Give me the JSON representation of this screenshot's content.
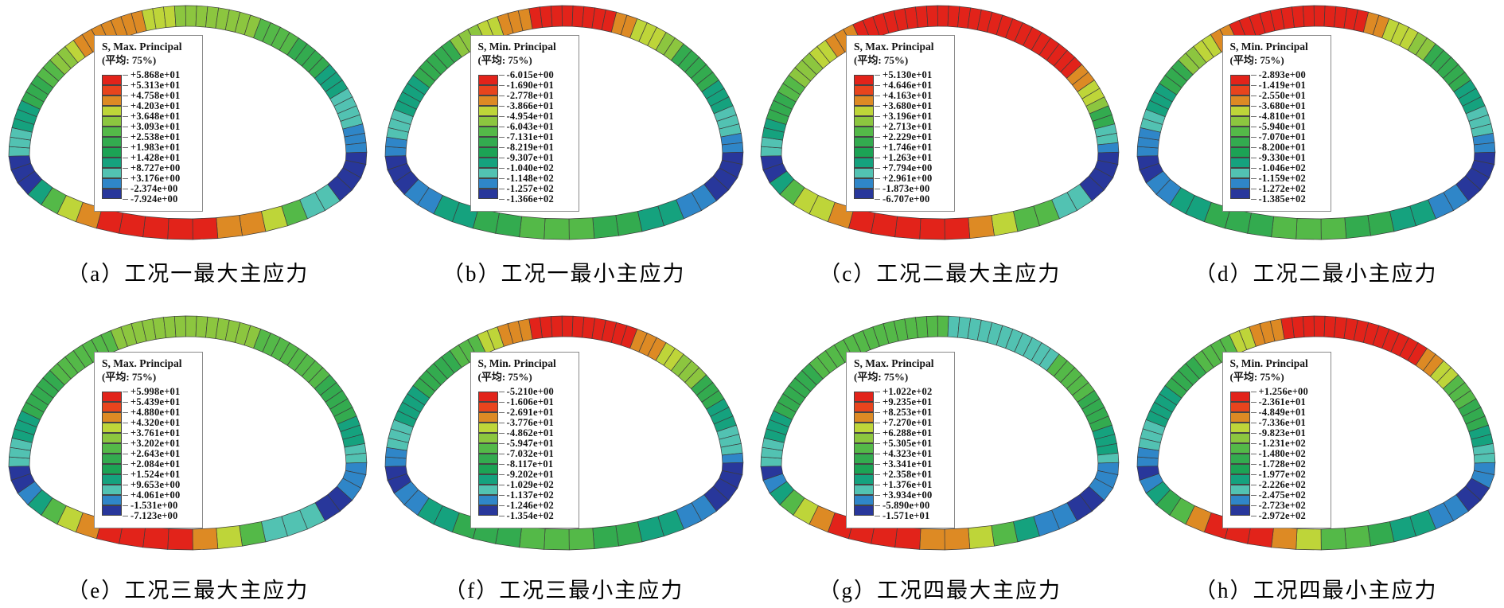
{
  "palette": [
    "#e2231a",
    "#e8441d",
    "#dd8a24",
    "#bed539",
    "#8cc63f",
    "#54b948",
    "#33ab4f",
    "#1ca355",
    "#15a27e",
    "#52c2b2",
    "#2f86c8",
    "#28379b"
  ],
  "mesh_line_color": "#3c3c3c",
  "legend_subtitle": "(平均: 75%)",
  "chart_data": [
    {
      "type": "contour",
      "panel": "a",
      "caption": "（a）工况一最大主应力",
      "legend": {
        "title": "S, Max. Principal",
        "subtitle": "(平均: 75%)",
        "ticks": [
          "+5.868e+01",
          "+5.313e+01",
          "+4.758e+01",
          "+4.203e+01",
          "+3.648e+01",
          "+3.093e+01",
          "+2.538e+01",
          "+1.983e+01",
          "+1.428e+01",
          "+8.727e+00",
          "+3.176e+00",
          "-2.374e+00",
          "-7.924e+00"
        ]
      },
      "ring_segments": [
        [
          0.035,
          9
        ],
        [
          0.08,
          8
        ],
        [
          0.12,
          6
        ],
        [
          0.155,
          5
        ],
        [
          0.18,
          4
        ],
        [
          0.2,
          3
        ],
        [
          0.29,
          2
        ],
        [
          0.335,
          3
        ],
        [
          0.44,
          4
        ],
        [
          0.5,
          5
        ],
        [
          0.56,
          6
        ],
        [
          0.6,
          8
        ],
        [
          0.655,
          9
        ],
        [
          0.7,
          10
        ],
        [
          0.75,
          11
        ],
        [
          0.78,
          9
        ],
        [
          0.795,
          5
        ],
        [
          0.81,
          3
        ],
        [
          0.83,
          2
        ],
        [
          0.9,
          0
        ],
        [
          0.92,
          2
        ],
        [
          0.935,
          3
        ],
        [
          0.95,
          5
        ],
        [
          0.965,
          8
        ],
        [
          1.0,
          11
        ]
      ]
    },
    {
      "type": "contour",
      "panel": "b",
      "caption": "（b）工况一最小主应力",
      "legend": {
        "title": "S, Min. Principal",
        "subtitle": "(平均: 75%)",
        "ticks": [
          "-6.015e+00",
          "-1.690e+01",
          "-2.778e+01",
          "-3.866e+01",
          "-4.954e+01",
          "-6.043e+01",
          "-7.131e+01",
          "-8.219e+01",
          "-9.307e+01",
          "-1.040e+02",
          "-1.148e+02",
          "-1.257e+02",
          "-1.366e+02"
        ]
      },
      "ring_segments": [
        [
          0.03,
          10
        ],
        [
          0.07,
          9
        ],
        [
          0.13,
          8
        ],
        [
          0.2,
          6
        ],
        [
          0.24,
          4
        ],
        [
          0.27,
          3
        ],
        [
          0.3,
          2
        ],
        [
          0.42,
          0
        ],
        [
          0.45,
          2
        ],
        [
          0.48,
          3
        ],
        [
          0.52,
          4
        ],
        [
          0.58,
          6
        ],
        [
          0.63,
          8
        ],
        [
          0.67,
          9
        ],
        [
          0.7,
          10
        ],
        [
          0.745,
          11
        ],
        [
          0.775,
          10
        ],
        [
          0.8,
          8
        ],
        [
          0.83,
          6
        ],
        [
          0.87,
          5
        ],
        [
          0.9,
          6
        ],
        [
          0.93,
          8
        ],
        [
          0.965,
          10
        ],
        [
          1.0,
          11
        ]
      ]
    },
    {
      "type": "contour",
      "panel": "c",
      "caption": "（c）工况二最大主应力",
      "legend": {
        "title": "S, Max. Principal",
        "subtitle": "(平均: 75%)",
        "ticks": [
          "+5.130e+01",
          "+4.646e+01",
          "+4.163e+01",
          "+3.680e+01",
          "+3.196e+01",
          "+2.713e+01",
          "+2.229e+01",
          "+1.746e+01",
          "+1.263e+01",
          "+7.794e+00",
          "+2.961e+00",
          "-1.873e+00",
          "-6.707e+00"
        ]
      },
      "ring_segments": [
        [
          0.03,
          9
        ],
        [
          0.06,
          8
        ],
        [
          0.1,
          6
        ],
        [
          0.13,
          5
        ],
        [
          0.16,
          4
        ],
        [
          0.19,
          3
        ],
        [
          0.235,
          2
        ],
        [
          0.55,
          0
        ],
        [
          0.58,
          2
        ],
        [
          0.61,
          3
        ],
        [
          0.63,
          4
        ],
        [
          0.65,
          6
        ],
        [
          0.675,
          9
        ],
        [
          0.7,
          10
        ],
        [
          0.75,
          11
        ],
        [
          0.78,
          9
        ],
        [
          0.8,
          5
        ],
        [
          0.82,
          3
        ],
        [
          0.84,
          2
        ],
        [
          0.9,
          0
        ],
        [
          0.92,
          2
        ],
        [
          0.94,
          3
        ],
        [
          0.955,
          5
        ],
        [
          0.97,
          8
        ],
        [
          1.0,
          11
        ]
      ]
    },
    {
      "type": "contour",
      "panel": "d",
      "caption": "（d）工况二最小主应力",
      "legend": {
        "title": "S, Min. Principal",
        "subtitle": "(平均: 75%)",
        "ticks": [
          "-2.893e+00",
          "-1.419e+01",
          "-2.550e+01",
          "-3.680e+01",
          "-4.810e+01",
          "-5.940e+01",
          "-7.070e+01",
          "-8.200e+01",
          "-9.330e+01",
          "-1.046e+02",
          "-1.159e+02",
          "-1.272e+02",
          "-1.385e+02"
        ]
      },
      "ring_segments": [
        [
          0.04,
          10
        ],
        [
          0.07,
          9
        ],
        [
          0.11,
          8
        ],
        [
          0.15,
          6
        ],
        [
          0.18,
          4
        ],
        [
          0.21,
          3
        ],
        [
          0.24,
          2
        ],
        [
          0.42,
          0
        ],
        [
          0.45,
          2
        ],
        [
          0.48,
          3
        ],
        [
          0.52,
          4
        ],
        [
          0.58,
          6
        ],
        [
          0.63,
          8
        ],
        [
          0.67,
          9
        ],
        [
          0.7,
          10
        ],
        [
          0.75,
          11
        ],
        [
          0.78,
          10
        ],
        [
          0.81,
          8
        ],
        [
          0.84,
          6
        ],
        [
          0.88,
          5
        ],
        [
          0.91,
          6
        ],
        [
          0.94,
          8
        ],
        [
          0.97,
          10
        ],
        [
          1.0,
          11
        ]
      ]
    },
    {
      "type": "contour",
      "panel": "e",
      "caption": "（e）工况三最大主应力",
      "legend": {
        "title": "S, Max. Principal",
        "subtitle": "(平均: 75%)",
        "ticks": [
          "+5.998e+01",
          "+5.439e+01",
          "+4.880e+01",
          "+4.320e+01",
          "+3.761e+01",
          "+3.202e+01",
          "+2.643e+01",
          "+2.084e+01",
          "+1.524e+01",
          "+9.653e+00",
          "+4.061e+00",
          "-1.531e+00",
          "-7.123e+00"
        ]
      },
      "ring_segments": [
        [
          0.04,
          9
        ],
        [
          0.09,
          8
        ],
        [
          0.15,
          6
        ],
        [
          0.25,
          5
        ],
        [
          0.45,
          4
        ],
        [
          0.55,
          5
        ],
        [
          0.62,
          6
        ],
        [
          0.66,
          8
        ],
        [
          0.7,
          9
        ],
        [
          0.73,
          10
        ],
        [
          0.77,
          11
        ],
        [
          0.8,
          9
        ],
        [
          0.815,
          5
        ],
        [
          0.83,
          3
        ],
        [
          0.845,
          2
        ],
        [
          0.9,
          0
        ],
        [
          0.915,
          2
        ],
        [
          0.93,
          3
        ],
        [
          0.945,
          5
        ],
        [
          0.96,
          8
        ],
        [
          0.975,
          10
        ],
        [
          1.0,
          11
        ]
      ]
    },
    {
      "type": "contour",
      "panel": "f",
      "caption": "（f）工况三最小主应力",
      "legend": {
        "title": "S, Min. Principal",
        "subtitle": "(平均: 75%)",
        "ticks": [
          "-5.210e+00",
          "-1.606e+01",
          "-2.691e+01",
          "-3.776e+01",
          "-4.862e+01",
          "-5.947e+01",
          "-7.032e+01",
          "-8.117e+01",
          "-9.202e+01",
          "-1.029e+02",
          "-1.137e+02",
          "-1.246e+02",
          "-1.354e+02"
        ]
      },
      "ring_segments": [
        [
          0.03,
          10
        ],
        [
          0.065,
          9
        ],
        [
          0.12,
          8
        ],
        [
          0.19,
          6
        ],
        [
          0.24,
          5
        ],
        [
          0.27,
          3
        ],
        [
          0.31,
          2
        ],
        [
          0.45,
          0
        ],
        [
          0.48,
          2
        ],
        [
          0.51,
          3
        ],
        [
          0.55,
          4
        ],
        [
          0.6,
          6
        ],
        [
          0.645,
          8
        ],
        [
          0.68,
          9
        ],
        [
          0.7,
          10
        ],
        [
          0.745,
          11
        ],
        [
          0.775,
          10
        ],
        [
          0.8,
          8
        ],
        [
          0.83,
          6
        ],
        [
          0.88,
          5
        ],
        [
          0.91,
          6
        ],
        [
          0.94,
          8
        ],
        [
          0.97,
          10
        ],
        [
          1.0,
          11
        ]
      ]
    },
    {
      "type": "contour",
      "panel": "g",
      "caption": "（g）工况四最大主应力",
      "legend": {
        "title": "S, Max. Principal",
        "subtitle": "(平均: 75%)",
        "ticks": [
          "+1.022e+02",
          "+9.235e+01",
          "+8.253e+01",
          "+7.270e+01",
          "+6.288e+01",
          "+5.305e+01",
          "+4.323e+01",
          "+3.341e+01",
          "+2.358e+01",
          "+1.376e+01",
          "+3.934e+00",
          "-5.890e+00",
          "-1.571e+01"
        ]
      },
      "ring_segments": [
        [
          0.04,
          9
        ],
        [
          0.09,
          8
        ],
        [
          0.16,
          6
        ],
        [
          0.36,
          5
        ],
        [
          0.52,
          9
        ],
        [
          0.58,
          5
        ],
        [
          0.64,
          6
        ],
        [
          0.68,
          8
        ],
        [
          0.7,
          9
        ],
        [
          0.73,
          10
        ],
        [
          0.77,
          11
        ],
        [
          0.795,
          10
        ],
        [
          0.81,
          8
        ],
        [
          0.825,
          5
        ],
        [
          0.84,
          3
        ],
        [
          0.855,
          2
        ],
        [
          0.91,
          0
        ],
        [
          0.928,
          2
        ],
        [
          0.945,
          3
        ],
        [
          0.958,
          5
        ],
        [
          0.97,
          8
        ],
        [
          0.985,
          10
        ],
        [
          1.0,
          11
        ]
      ]
    },
    {
      "type": "contour",
      "panel": "h",
      "caption": "（h）工况四最小主应力",
      "legend": {
        "title": "S, Min. Principal",
        "subtitle": "(平均: 75%)",
        "ticks": [
          "+1.256e+00",
          "-2.361e+01",
          "-4.849e+01",
          "-7.336e+01",
          "-9.823e+01",
          "-1.231e+02",
          "-1.480e+02",
          "-1.728e+02",
          "-1.977e+02",
          "-2.226e+02",
          "-2.475e+02",
          "-2.723e+02",
          "-2.972e+02"
        ]
      },
      "ring_segments": [
        [
          0.03,
          10
        ],
        [
          0.07,
          9
        ],
        [
          0.12,
          8
        ],
        [
          0.18,
          6
        ],
        [
          0.23,
          5
        ],
        [
          0.26,
          3
        ],
        [
          0.3,
          2
        ],
        [
          0.5,
          0
        ],
        [
          0.53,
          2
        ],
        [
          0.56,
          3
        ],
        [
          0.6,
          5
        ],
        [
          0.64,
          6
        ],
        [
          0.67,
          8
        ],
        [
          0.695,
          9
        ],
        [
          0.72,
          10
        ],
        [
          0.755,
          11
        ],
        [
          0.78,
          10
        ],
        [
          0.8,
          8
        ],
        [
          0.82,
          6
        ],
        [
          0.845,
          5
        ],
        [
          0.86,
          3
        ],
        [
          0.875,
          2
        ],
        [
          0.915,
          0
        ],
        [
          0.93,
          2
        ],
        [
          0.945,
          5
        ],
        [
          0.96,
          6
        ],
        [
          0.975,
          8
        ],
        [
          0.99,
          10
        ],
        [
          1.0,
          11
        ]
      ]
    }
  ]
}
